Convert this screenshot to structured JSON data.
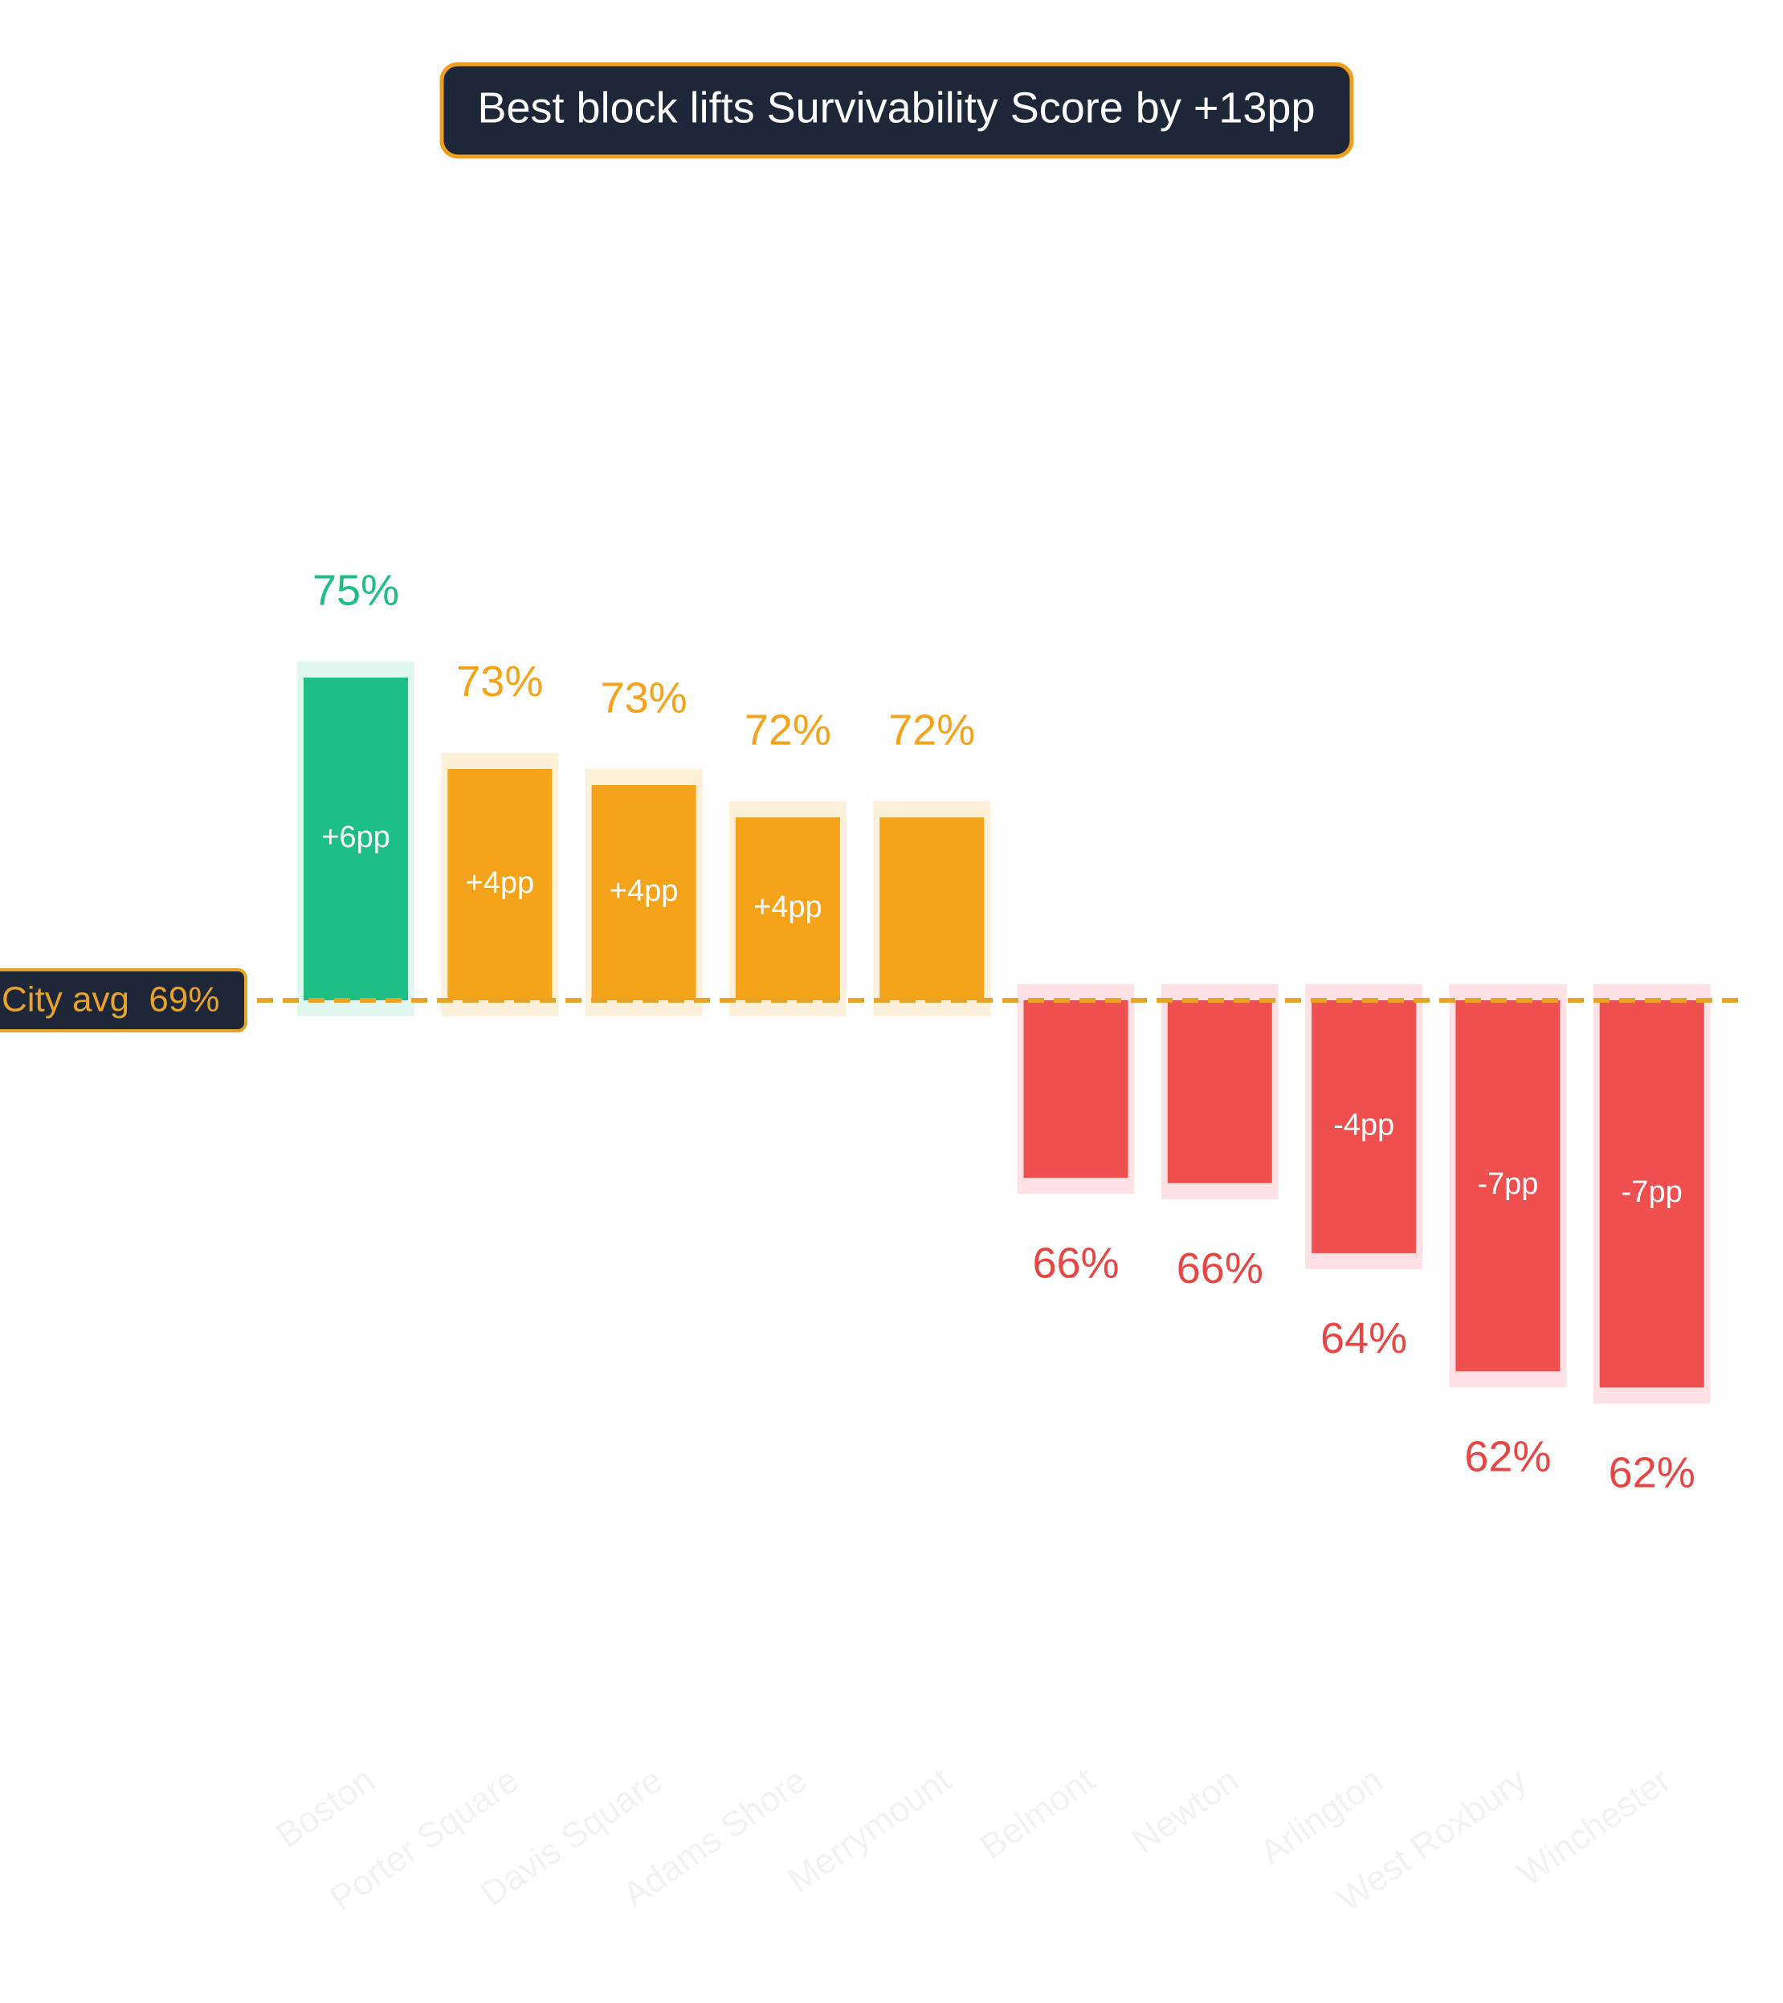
{
  "chart_data": {
    "type": "bar",
    "title": "Best block lifts Survivability Score by +13pp",
    "categories": [
      "Boston",
      "Porter Square",
      "Davis Square",
      "Adams Shore",
      "Merrymount",
      "Belmont",
      "Newton",
      "Arlington",
      "West Roxbury",
      "Winchester"
    ],
    "values": [
      75.0,
      73.3,
      73.0,
      72.4,
      72.4,
      65.7,
      65.6,
      64.3,
      62.1,
      61.8
    ],
    "value_labels": [
      "75%",
      "73%",
      "73%",
      "72%",
      "72%",
      "66%",
      "66%",
      "64%",
      "62%",
      "62%"
    ],
    "delta_labels": [
      "+6pp",
      "+4pp",
      "+4pp",
      "+4pp",
      null,
      null,
      null,
      "-4pp",
      "-7pp",
      "-7pp"
    ],
    "colors": [
      "#1dbf85",
      "#f4a31a",
      "#f4a31a",
      "#f4a31a",
      "#f4a31a",
      "#ef4f4f",
      "#ef4f4f",
      "#ef4f4f",
      "#ef4f4f",
      "#ef4f4f"
    ],
    "halo_colors": [
      "#dff7ee",
      "#fdf0d8",
      "#fdf0d8",
      "#fdf0d8",
      "#fdf0d8",
      "#fde1e5",
      "#fde1e5",
      "#fde1e5",
      "#fde1e5",
      "#fde1e5"
    ],
    "reference": {
      "value": 69,
      "label": "City avg  69%",
      "color": "#e8a32a"
    },
    "ylim": [
      55,
      80
    ]
  }
}
